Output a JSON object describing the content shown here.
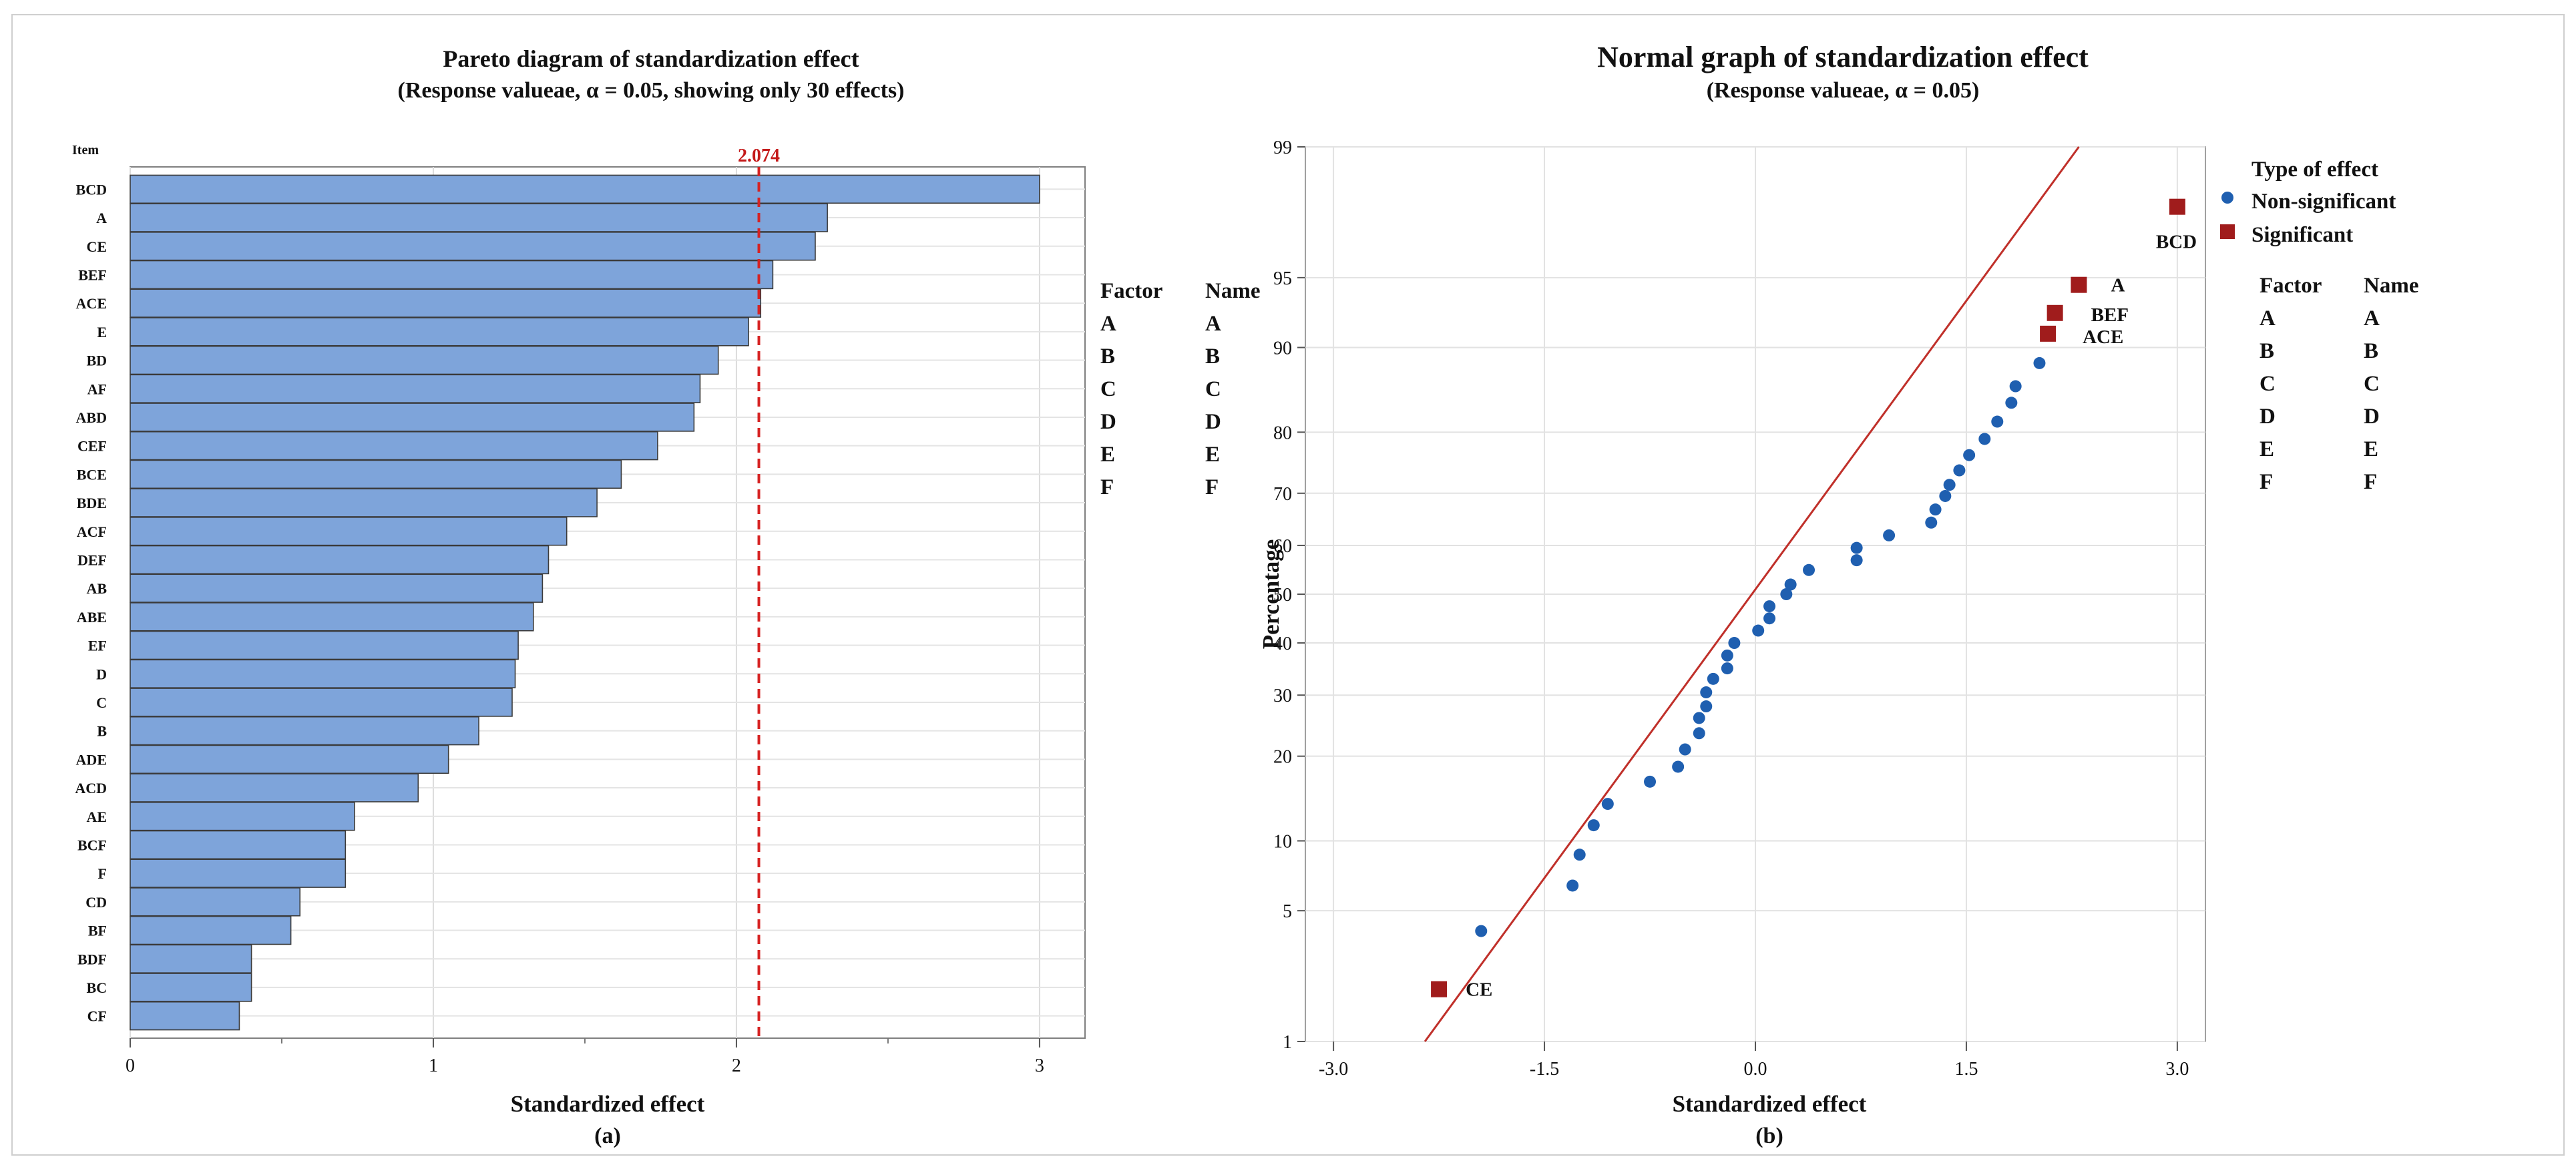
{
  "chart_data": [
    {
      "type": "bar",
      "orientation": "horizontal",
      "title": "Pareto diagram of standardization effect",
      "subtitle": "(Response valueae, α = 0.05, showing only 30 effects)",
      "xlabel": "Standardized effect",
      "ylabel_header": "Item",
      "caption": "(a)",
      "categories": [
        "BCD",
        "A",
        "CE",
        "BEF",
        "ACE",
        "E",
        "BD",
        "AF",
        "ABD",
        "CEF",
        "BCE",
        "BDE",
        "ACF",
        "DEF",
        "AB",
        "ABE",
        "EF",
        "D",
        "C",
        "B",
        "ADE",
        "ACD",
        "AE",
        "BCF",
        "F",
        "CD",
        "BF",
        "BDF",
        "BC",
        "CF"
      ],
      "values": [
        3.0,
        2.3,
        2.26,
        2.12,
        2.08,
        2.04,
        1.94,
        1.88,
        1.86,
        1.74,
        1.62,
        1.54,
        1.44,
        1.38,
        1.36,
        1.33,
        1.28,
        1.27,
        1.26,
        1.15,
        1.05,
        0.95,
        0.74,
        0.71,
        0.71,
        0.56,
        0.53,
        0.4,
        0.4,
        0.36
      ],
      "xlim": [
        0,
        3.15
      ],
      "xticks": [
        0,
        1,
        2,
        3
      ],
      "xtick_labels": [
        "0",
        "1",
        "2",
        "3"
      ],
      "reference_line": {
        "value": 2.074,
        "label": "2.074"
      },
      "bar_color": "#7ea4da",
      "ref_color": "#d62222",
      "grid": true,
      "legend_table": {
        "headers": [
          "Factor",
          "Name"
        ],
        "rows": [
          [
            "A",
            "A"
          ],
          [
            "B",
            "B"
          ],
          [
            "C",
            "C"
          ],
          [
            "D",
            "D"
          ],
          [
            "E",
            "E"
          ],
          [
            "F",
            "F"
          ]
        ]
      }
    },
    {
      "type": "scatter",
      "title": "Normal graph of standardization effect",
      "subtitle": "(Response valueae, α = 0.05)",
      "xlabel": "Standardized effect",
      "ylabel": "Percentage",
      "caption": "(b)",
      "xlim": [
        -3.2,
        3.2
      ],
      "xticks": [
        -3.0,
        -1.5,
        0.0,
        1.5,
        3.0
      ],
      "xtick_labels": [
        "-3.0",
        "-1.5",
        "0.0",
        "1.5",
        "3.0"
      ],
      "ylim": [
        1,
        99
      ],
      "yticks": [
        1,
        5,
        10,
        20,
        30,
        40,
        50,
        60,
        70,
        80,
        90,
        95,
        99
      ],
      "ytick_labels": [
        "1",
        "5",
        "10",
        "20",
        "30",
        "40",
        "50",
        "60",
        "70",
        "80",
        "90",
        "95",
        "99"
      ],
      "grid": true,
      "line": {
        "x": [
          -2.35,
          2.3
        ],
        "y": [
          1,
          99
        ],
        "color": "#c0302a"
      },
      "series": [
        {
          "name": "Non-significant",
          "marker": "circle",
          "color": "#1f5fb0",
          "points": [
            [
              -1.95,
              4.0
            ],
            [
              -1.3,
              6.5
            ],
            [
              -1.25,
              8.8
            ],
            [
              -1.15,
              11.5
            ],
            [
              -1.05,
              13.8
            ],
            [
              -0.75,
              16.5
            ],
            [
              -0.55,
              18.5
            ],
            [
              -0.5,
              21
            ],
            [
              -0.4,
              23.5
            ],
            [
              -0.4,
              26
            ],
            [
              -0.35,
              28
            ],
            [
              -0.35,
              30.5
            ],
            [
              -0.3,
              33
            ],
            [
              -0.2,
              35
            ],
            [
              -0.2,
              37.5
            ],
            [
              -0.15,
              40
            ],
            [
              0.02,
              42.5
            ],
            [
              0.1,
              45
            ],
            [
              0.1,
              47.5
            ],
            [
              0.22,
              50
            ],
            [
              0.25,
              52
            ],
            [
              0.38,
              55
            ],
            [
              0.72,
              57
            ],
            [
              0.72,
              59.5
            ],
            [
              0.95,
              62
            ],
            [
              1.25,
              64.5
            ],
            [
              1.28,
              67
            ],
            [
              1.35,
              69.5
            ],
            [
              1.38,
              71.5
            ],
            [
              1.45,
              74
            ],
            [
              1.52,
              76.5
            ],
            [
              1.63,
              79
            ],
            [
              1.72,
              81.5
            ],
            [
              1.82,
              84
            ],
            [
              1.85,
              86
            ],
            [
              2.02,
              88.5
            ]
          ]
        },
        {
          "name": "Significant",
          "marker": "square",
          "color": "#a01c1c",
          "points": [
            [
              -2.25,
              2.0
            ],
            [
              2.3,
              94.6
            ],
            [
              2.13,
              92.8
            ],
            [
              2.08,
              91.2
            ],
            [
              3.0,
              97.8
            ]
          ],
          "labels": [
            "CE",
            "A",
            "BEF",
            "ACE",
            "BCD"
          ]
        }
      ],
      "legend_title": "Type of effect",
      "legend_table": {
        "headers": [
          "Factor",
          "Name"
        ],
        "rows": [
          [
            "A",
            "A"
          ],
          [
            "B",
            "B"
          ],
          [
            "C",
            "C"
          ],
          [
            "D",
            "D"
          ],
          [
            "E",
            "E"
          ],
          [
            "F",
            "F"
          ]
        ]
      }
    }
  ]
}
